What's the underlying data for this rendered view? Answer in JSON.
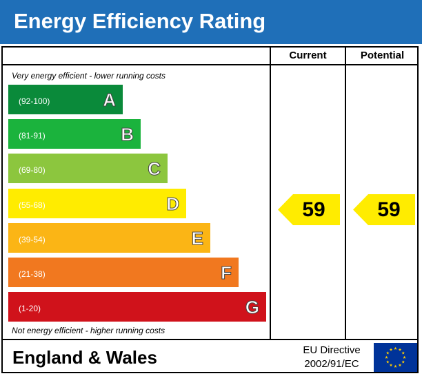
{
  "header": {
    "title": "Energy Efficiency Rating"
  },
  "columns": {
    "current": "Current",
    "potential": "Potential"
  },
  "notes": {
    "top": "Very energy efficient - lower running costs",
    "bottom": "Not energy efficient - higher running costs"
  },
  "bands": [
    {
      "range": "(92-100)",
      "letter": "A",
      "color": "#0a8a3a"
    },
    {
      "range": "(81-91)",
      "letter": "B",
      "color": "#1bb33d"
    },
    {
      "range": "(69-80)",
      "letter": "C",
      "color": "#8cc63e"
    },
    {
      "range": "(55-68)",
      "letter": "D",
      "color": "#ffec00"
    },
    {
      "range": "(39-54)",
      "letter": "E",
      "color": "#fbb515"
    },
    {
      "range": "(21-38)",
      "letter": "F",
      "color": "#f1781f"
    },
    {
      "range": "(1-20)",
      "letter": "G",
      "color": "#d0121b"
    }
  ],
  "ratings": {
    "current": {
      "value": "59",
      "band": "D",
      "color": "#ffec00"
    },
    "potential": {
      "value": "59",
      "band": "D",
      "color": "#ffec00"
    }
  },
  "footer": {
    "region": "England & Wales",
    "directive_line1": "EU Directive",
    "directive_line2": "2002/91/EC",
    "flag_icon": "eu-flag-icon",
    "flag_color": "#003399",
    "star_color": "#ffcc00"
  },
  "header_color": "#1f6fb8"
}
